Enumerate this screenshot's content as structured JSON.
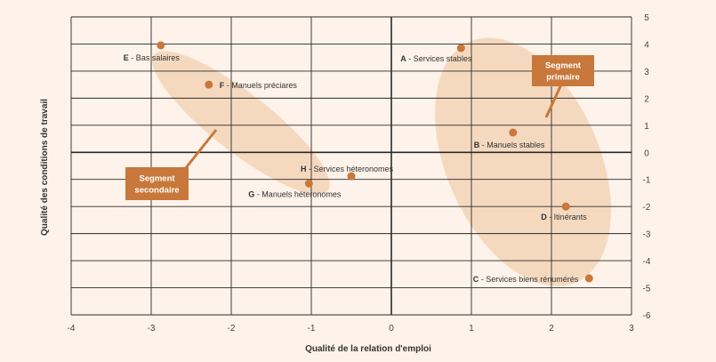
{
  "chart_data": {
    "type": "scatter",
    "title": "",
    "xlabel": "Qualité de la relation d'emploi",
    "ylabel": "Qualité des conditions de travail",
    "xlim": [
      -4,
      3
    ],
    "ylim": [
      -6,
      5
    ],
    "x_ticks": [
      -4,
      -3,
      -2,
      -1,
      0,
      1,
      2,
      3
    ],
    "y_ticks": [
      5,
      4,
      3,
      2,
      1,
      0,
      -1,
      -2,
      -3,
      -4,
      -5,
      -6
    ],
    "grid": true,
    "points": [
      {
        "letter": "A",
        "label": "Services stables",
        "x": 0.87,
        "y": 3.85
      },
      {
        "letter": "B",
        "label": "Manuels stables",
        "x": 1.52,
        "y": 0.73
      },
      {
        "letter": "C",
        "label": "Services biens rénumérés",
        "x": 2.47,
        "y": -4.65
      },
      {
        "letter": "D",
        "label": "Itinérants",
        "x": 2.18,
        "y": -2.0
      },
      {
        "letter": "E",
        "label": "Bas salaires",
        "x": -2.88,
        "y": 3.95
      },
      {
        "letter": "F",
        "label": "Manuels préciares",
        "x": -2.28,
        "y": 2.5
      },
      {
        "letter": "G",
        "label": "Manuels héteronomes",
        "x": -1.03,
        "y": -1.15
      },
      {
        "letter": "H",
        "label": "Services héteronomes",
        "x": -0.5,
        "y": -0.88
      }
    ],
    "segments": [
      {
        "label_line1": "Segment",
        "label_line2": "primaire"
      },
      {
        "label_line1": "Segment",
        "label_line2": "secondaire"
      }
    ],
    "colors": {
      "point": "#c8783a",
      "ellipse": "#f5d9bf",
      "box": "#c8783a",
      "background": "#fdf3ea",
      "grid": "#2a2a2a"
    }
  }
}
